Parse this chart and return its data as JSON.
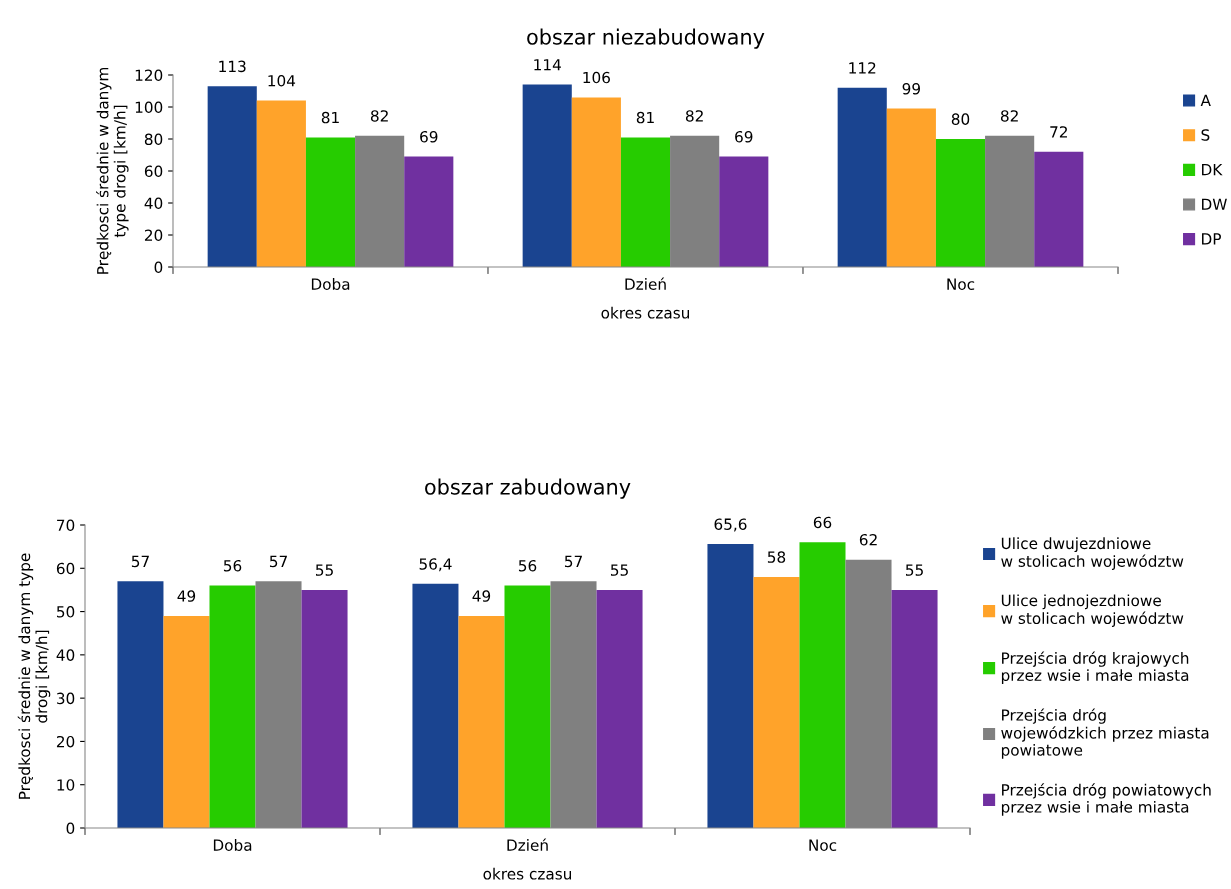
{
  "chart_data": [
    {
      "type": "bar",
      "title": "obszar niezabudowany",
      "xlabel": "okres czasu",
      "ylabel": "Prędkosci średnie w danym\ntype drogi [km/h]",
      "categories": [
        "Doba",
        "Dzień",
        "Noc"
      ],
      "ylim": [
        0,
        120
      ],
      "yticks": [
        0,
        20,
        40,
        60,
        80,
        100,
        120
      ],
      "grid": false,
      "legend": "right",
      "series": [
        {
          "name": "A",
          "color": "#1a4490",
          "values": [
            113,
            114,
            112
          ],
          "value_labels": [
            "113",
            "114",
            "112"
          ]
        },
        {
          "name": "S",
          "color": "#ffa32a",
          "values": [
            104,
            106,
            99
          ],
          "value_labels": [
            "104",
            "106",
            "99"
          ]
        },
        {
          "name": "DK",
          "color": "#26cc00",
          "values": [
            81,
            81,
            80
          ],
          "value_labels": [
            "81",
            "81",
            "80"
          ]
        },
        {
          "name": "DW",
          "color": "#808080",
          "values": [
            82,
            82,
            82
          ],
          "value_labels": [
            "82",
            "82",
            "82"
          ]
        },
        {
          "name": "DP",
          "color": "#7030a0",
          "values": [
            69,
            69,
            72
          ],
          "value_labels": [
            "69",
            "69",
            "72"
          ]
        }
      ]
    },
    {
      "type": "bar",
      "title": "obszar zabudowany",
      "xlabel": "okres czasu",
      "ylabel": "Prędkosci średnie w danym type\ndrogi [km/h]",
      "categories": [
        "Doba",
        "Dzień",
        "Noc"
      ],
      "ylim": [
        0,
        70
      ],
      "yticks": [
        0,
        10,
        20,
        30,
        40,
        50,
        60,
        70
      ],
      "grid": false,
      "legend": "right",
      "series": [
        {
          "name": "Ulice dwujezdniowe\nw stolicach województw",
          "color": "#1a4490",
          "values": [
            57,
            56.4,
            65.6
          ],
          "value_labels": [
            "57",
            "56,4",
            "65,6"
          ]
        },
        {
          "name": "Ulice jednojezdniowe\nw stolicach województw",
          "color": "#ffa32a",
          "values": [
            49,
            49,
            58
          ],
          "value_labels": [
            "49",
            "49",
            "58"
          ]
        },
        {
          "name": "Przejścia dróg krajowych\nprzez wsie i małe miasta",
          "color": "#26cc00",
          "values": [
            56,
            56,
            66
          ],
          "value_labels": [
            "56",
            "56",
            "66"
          ]
        },
        {
          "name": "Przejścia dróg\nwojewódzkich przez miasta\npowiatowe",
          "color": "#808080",
          "values": [
            57,
            57,
            62
          ],
          "value_labels": [
            "57",
            "57",
            "62"
          ]
        },
        {
          "name": "Przejścia dróg powiatowych\nprzez wsie i małe miasta",
          "color": "#7030a0",
          "values": [
            55,
            55,
            55
          ],
          "value_labels": [
            "55",
            "55",
            "55"
          ]
        }
      ]
    }
  ]
}
